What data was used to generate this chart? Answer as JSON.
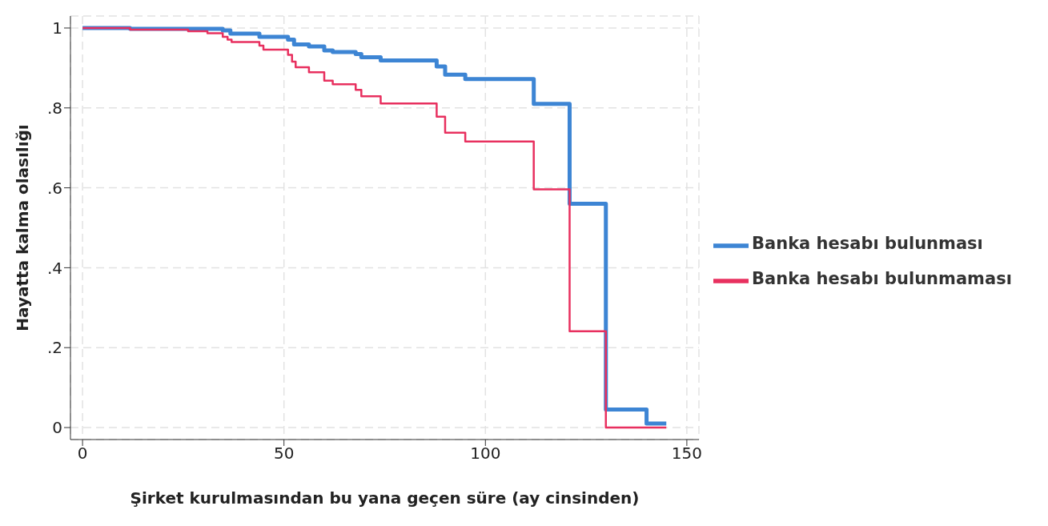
{
  "chart_data": {
    "type": "step",
    "xlabel": "Şirket kurulmasından bu yana geçen süre (ay cinsinden)",
    "ylabel": "Hayatta kalma olasılığı",
    "xlim": [
      -3,
      153
    ],
    "xticks": [
      0,
      50,
      100,
      150
    ],
    "ylim": [
      -0.03,
      1.03
    ],
    "yticks": [
      {
        "value": 0,
        "label": "0"
      },
      {
        "value": 0.2,
        "label": ".2"
      },
      {
        "value": 0.4,
        "label": ".4"
      },
      {
        "value": 0.6,
        "label": ".6"
      },
      {
        "value": 0.8,
        "label": ".8"
      },
      {
        "value": 1,
        "label": "1"
      }
    ],
    "grid": true,
    "legend": "right",
    "line_style": "solid",
    "marker": "none",
    "series": [
      {
        "name": "Banka hesabı bulunması",
        "color": "#3d85d4",
        "x": [
          0,
          11.8,
          34.8,
          36.7,
          43.9,
          51,
          52.5,
          56.2,
          60,
          62.1,
          67.8,
          69.2,
          74,
          87.9,
          90,
          95,
          112,
          120.9,
          129.9,
          140,
          144.9
        ],
        "values": [
          1,
          0.998,
          0.994,
          0.986,
          0.978,
          0.971,
          0.959,
          0.954,
          0.944,
          0.94,
          0.935,
          0.927,
          0.919,
          0.904,
          0.883,
          0.872,
          0.81,
          0.56,
          0.045,
          0.01,
          0.01
        ]
      },
      {
        "name": "Banka hesabı bulunmaması",
        "color": "#e8305f",
        "x": [
          0,
          11.8,
          26.2,
          31,
          34.8,
          36,
          37,
          43.9,
          44.9,
          51,
          52,
          52.9,
          56.2,
          60,
          62.1,
          67.8,
          69.2,
          74,
          87.9,
          90,
          95,
          112,
          120.9,
          129.9,
          144.9
        ],
        "values": [
          1,
          0.996,
          0.992,
          0.987,
          0.978,
          0.971,
          0.965,
          0.956,
          0.946,
          0.933,
          0.916,
          0.902,
          0.889,
          0.868,
          0.859,
          0.845,
          0.829,
          0.811,
          0.778,
          0.738,
          0.716,
          0.596,
          0.241,
          0,
          0
        ]
      }
    ]
  }
}
